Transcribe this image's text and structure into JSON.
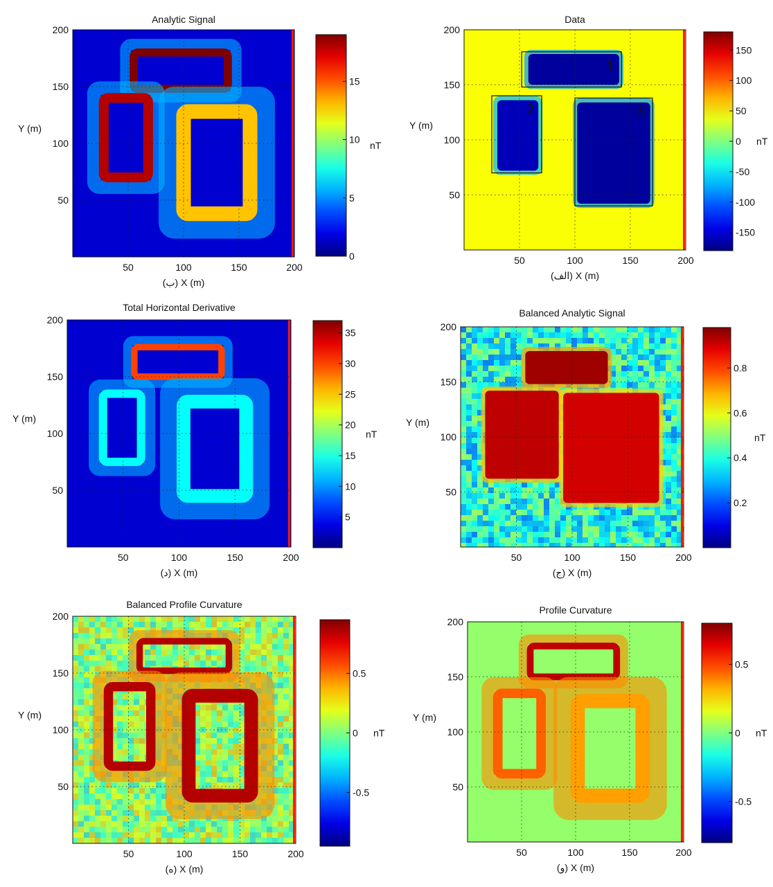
{
  "chart_data": [
    {
      "type": "heatmap",
      "panel_tag": "(ب)",
      "title": "Analytic Signal",
      "xlabel": "X (m)",
      "ylabel": "Y (m)",
      "xlim": [
        0,
        200
      ],
      "ylim": [
        0,
        200
      ],
      "x_ticks": [
        "50",
        "100",
        "150",
        "200"
      ],
      "y_ticks": [
        "50",
        "100",
        "150",
        "200"
      ],
      "grid": true,
      "colorscale": "jet",
      "colorbar": {
        "range": [
          0,
          19
        ],
        "ticks": [
          "0",
          "5",
          "10",
          "15"
        ],
        "tick_values": [
          0,
          5,
          10,
          15
        ],
        "unit": "nT"
      },
      "anomalies": [
        {
          "shape": "rectangle-outline",
          "x_range": [
            55,
            140
          ],
          "y_range": [
            148,
            180
          ],
          "value": 19
        },
        {
          "shape": "rectangle-outline",
          "x_range": [
            28,
            68
          ],
          "y_range": [
            70,
            140
          ],
          "value": 18
        },
        {
          "shape": "rectangle-outline",
          "x_range": [
            100,
            160
          ],
          "y_range": [
            38,
            128
          ],
          "value": 13
        }
      ]
    },
    {
      "type": "heatmap",
      "panel_tag": "(الف)",
      "title": "Data",
      "xlabel": "X (m)",
      "ylabel": "Y (m)",
      "xlim": [
        0,
        200
      ],
      "ylim": [
        0,
        200
      ],
      "x_ticks": [
        "50",
        "100",
        "150",
        "200"
      ],
      "y_ticks": [
        "50",
        "100",
        "150",
        "200"
      ],
      "grid": true,
      "colorscale": "jet",
      "colorbar": {
        "range": [
          -180,
          180
        ],
        "ticks": [
          "150",
          "100",
          "50",
          "0",
          "-50",
          "-100",
          "-150"
        ],
        "tick_values": [
          150,
          100,
          50,
          0,
          -50,
          -100,
          -150
        ],
        "unit": "nT"
      },
      "boxes": [
        {
          "label": "1",
          "x_range": [
            52,
            142
          ],
          "y_range": [
            148,
            180
          ]
        },
        {
          "label": "2",
          "x_range": [
            25,
            70
          ],
          "y_range": [
            70,
            140
          ]
        },
        {
          "label": "3",
          "x_range": [
            100,
            170
          ],
          "y_range": [
            40,
            138
          ]
        }
      ],
      "anomalies": [
        {
          "shape": "filled",
          "x_range": [
            58,
            140
          ],
          "y_range": [
            150,
            178
          ],
          "value": -170
        },
        {
          "shape": "filled",
          "x_range": [
            30,
            67
          ],
          "y_range": [
            72,
            136
          ],
          "value": -160
        },
        {
          "shape": "filled",
          "x_range": [
            102,
            168
          ],
          "y_range": [
            42,
            134
          ],
          "value": -170
        }
      ]
    },
    {
      "type": "heatmap",
      "panel_tag": "(د)",
      "title": "Total Horizontal Derivative",
      "xlabel": "X (m)",
      "ylabel": "Y (m)",
      "xlim": [
        0,
        200
      ],
      "ylim": [
        0,
        200
      ],
      "x_ticks": [
        "50",
        "100",
        "150",
        "200"
      ],
      "y_ticks": [
        "50",
        "100",
        "150",
        "200"
      ],
      "grid": true,
      "colorscale": "jet",
      "colorbar": {
        "range": [
          0,
          37
        ],
        "ticks": [
          "35",
          "30",
          "25",
          "20",
          "15",
          "10",
          "5"
        ],
        "tick_values": [
          35,
          30,
          25,
          20,
          15,
          10,
          5
        ],
        "unit": "nT"
      },
      "anomalies": [
        {
          "shape": "rectangle-outline",
          "x_range": [
            60,
            138
          ],
          "y_range": [
            150,
            176
          ],
          "value": 30
        },
        {
          "shape": "rectangle-outline",
          "x_range": [
            32,
            66
          ],
          "y_range": [
            75,
            135
          ],
          "value": 14
        },
        {
          "shape": "rectangle-outline",
          "x_range": [
            104,
            160
          ],
          "y_range": [
            45,
            128
          ],
          "value": 14
        }
      ]
    },
    {
      "type": "heatmap",
      "panel_tag": "(ج)",
      "title": "Balanced Analytic Signal",
      "xlabel": "X (m)",
      "ylabel": "Y (m)",
      "xlim": [
        0,
        200
      ],
      "ylim": [
        0,
        200
      ],
      "x_ticks": [
        "50",
        "100",
        "150",
        "200"
      ],
      "y_ticks": [
        "50",
        "100",
        "150",
        "200"
      ],
      "grid": true,
      "colorscale": "jet",
      "colorbar": {
        "range": [
          0,
          0.98
        ],
        "ticks": [
          "0.8",
          "0.6",
          "0.4",
          "0.2"
        ],
        "tick_values": [
          0.8,
          0.6,
          0.4,
          0.2
        ],
        "unit": "nT"
      },
      "anomalies": [
        {
          "shape": "filled",
          "x_range": [
            58,
            132
          ],
          "y_range": [
            148,
            178
          ],
          "value": 0.95
        },
        {
          "shape": "filled",
          "x_range": [
            22,
            88
          ],
          "y_range": [
            62,
            142
          ],
          "value": 0.92
        },
        {
          "shape": "filled",
          "x_range": [
            92,
            178
          ],
          "y_range": [
            40,
            140
          ],
          "value": 0.9
        }
      ]
    },
    {
      "type": "heatmap",
      "panel_tag": "(ه)",
      "title": "Balanced Profile Curvature",
      "xlabel": "X (m)",
      "ylabel": "Y (m)",
      "xlim": [
        0,
        200
      ],
      "ylim": [
        0,
        200
      ],
      "x_ticks": [
        "50",
        "100",
        "150",
        "200"
      ],
      "y_ticks": [
        "50",
        "100",
        "150",
        "200"
      ],
      "grid": true,
      "colorscale": "jet",
      "colorbar": {
        "range": [
          -0.95,
          0.95
        ],
        "ticks": [
          "0.5",
          "0",
          "-0.5"
        ],
        "tick_values": [
          0.5,
          0,
          -0.5
        ],
        "unit": "nT"
      },
      "anomalies": [
        {
          "shape": "rectangle-outline",
          "x_range": [
            60,
            140
          ],
          "y_range": [
            152,
            178
          ],
          "value": 0.85
        },
        {
          "shape": "rectangle-outline",
          "x_range": [
            32,
            70
          ],
          "y_range": [
            68,
            138
          ],
          "value": 0.85
        },
        {
          "shape": "rectangle-outline",
          "x_range": [
            104,
            160
          ],
          "y_range": [
            42,
            130
          ],
          "value": 0.85
        }
      ]
    },
    {
      "type": "heatmap",
      "panel_tag": "(و)",
      "title": "Profile Curvature",
      "xlabel": "X (m)",
      "ylabel": "Y (m)",
      "xlim": [
        0,
        200
      ],
      "ylim": [
        0,
        200
      ],
      "x_ticks": [
        "50",
        "100",
        "150",
        "200"
      ],
      "y_ticks": [
        "50",
        "100",
        "150",
        "200"
      ],
      "grid": true,
      "colorscale": "jet",
      "colorbar": {
        "range": [
          -0.8,
          0.8
        ],
        "ticks": [
          "0.5",
          "0",
          "-0.5"
        ],
        "tick_values": [
          0.5,
          0,
          -0.5
        ],
        "unit": "nT"
      },
      "anomalies": [
        {
          "shape": "rectangle-outline",
          "x_range": [
            58,
            138
          ],
          "y_range": [
            150,
            178
          ],
          "value": 0.7
        },
        {
          "shape": "rectangle-outline",
          "x_range": [
            28,
            68
          ],
          "y_range": [
            62,
            135
          ],
          "value": 0.45
        },
        {
          "shape": "rectangle-outline",
          "x_range": [
            102,
            162
          ],
          "y_range": [
            42,
            128
          ],
          "value": 0.35
        }
      ]
    }
  ]
}
